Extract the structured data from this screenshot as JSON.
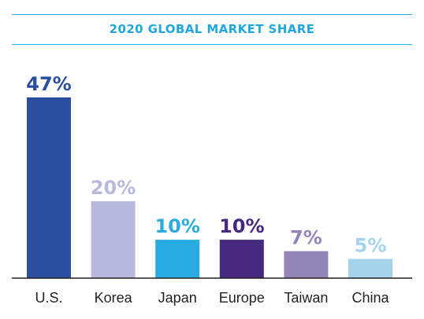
{
  "chart_data": {
    "type": "bar",
    "title": "2020 GLOBAL MARKET SHARE",
    "xlabel": "",
    "ylabel": "",
    "ylim": [
      0,
      47
    ],
    "categories": [
      "U.S.",
      "Korea",
      "Japan",
      "Europe",
      "Taiwan",
      "China"
    ],
    "values": [
      47,
      20,
      10,
      10,
      7,
      5
    ],
    "data_labels": [
      "47%",
      "20%",
      "10%",
      "10%",
      "7%",
      "5%"
    ],
    "bar_colors": [
      "#2c4ea0",
      "#b6b9dd",
      "#29abe2",
      "#45287f",
      "#9485b8",
      "#a4d3ee"
    ],
    "label_colors": [
      "#2c4ea0",
      "#b6b9dd",
      "#29abe2",
      "#45287f",
      "#9485b8",
      "#a4d3ee"
    ],
    "grid": false,
    "legend": "none"
  }
}
